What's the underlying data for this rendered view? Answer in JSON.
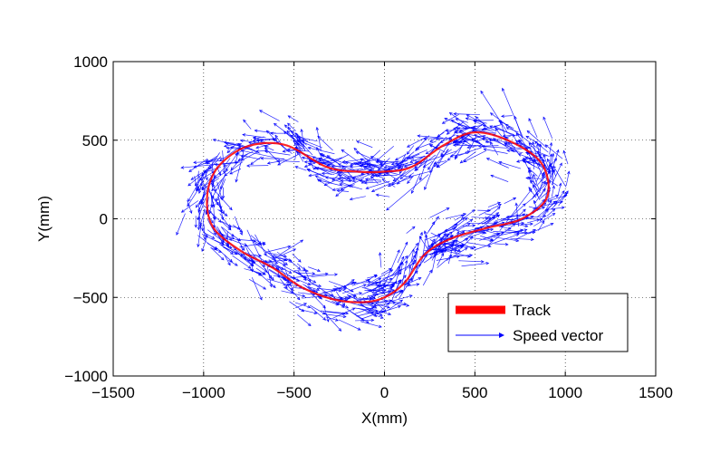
{
  "chart_data": {
    "type": "scatter",
    "subtype": "quiver",
    "xlabel": "X(mm)",
    "ylabel": "Y(mm)",
    "xlim": [
      -1500,
      1500
    ],
    "ylim": [
      -1000,
      1000
    ],
    "xticks": [
      -1500,
      -1000,
      -500,
      0,
      500,
      1000,
      1500
    ],
    "yticks": [
      -1000,
      -500,
      0,
      500,
      1000
    ],
    "xtick_labels": [
      "−1500",
      "−1000",
      "−500",
      "0",
      "500",
      "1000",
      "1500"
    ],
    "ytick_labels": [
      "−1000",
      "−500",
      "0",
      "500",
      "1000"
    ],
    "grid": true,
    "grid_style": "dotted",
    "legend_position": "bottom-right",
    "legend": [
      {
        "label": "Track",
        "color": "#ff0000",
        "marker": "thick-line"
      },
      {
        "label": "Speed vector",
        "color": "#0000ff",
        "marker": "arrow"
      }
    ],
    "track": {
      "name": "Track",
      "color": "#ff0000",
      "points": [
        [
          -320,
          330
        ],
        [
          -550,
          470
        ],
        [
          -760,
          460
        ],
        [
          -920,
          330
        ],
        [
          -980,
          150
        ],
        [
          -950,
          -50
        ],
        [
          -800,
          -200
        ],
        [
          -620,
          -310
        ],
        [
          -450,
          -440
        ],
        [
          -250,
          -520
        ],
        [
          -50,
          -520
        ],
        [
          100,
          -420
        ],
        [
          220,
          -230
        ],
        [
          360,
          -130
        ],
        [
          560,
          -60
        ],
        [
          760,
          0
        ],
        [
          900,
          140
        ],
        [
          870,
          350
        ],
        [
          700,
          490
        ],
        [
          500,
          550
        ],
        [
          330,
          470
        ],
        [
          150,
          330
        ],
        [
          0,
          300
        ],
        [
          -150,
          300
        ],
        [
          -320,
          330
        ]
      ]
    },
    "speed_vectors": {
      "name": "Speed vector",
      "color": "#0000ff",
      "count": 900,
      "position_jitter_mm": 60,
      "mean_length_mm": 110,
      "max_length_mm": 260
    }
  }
}
